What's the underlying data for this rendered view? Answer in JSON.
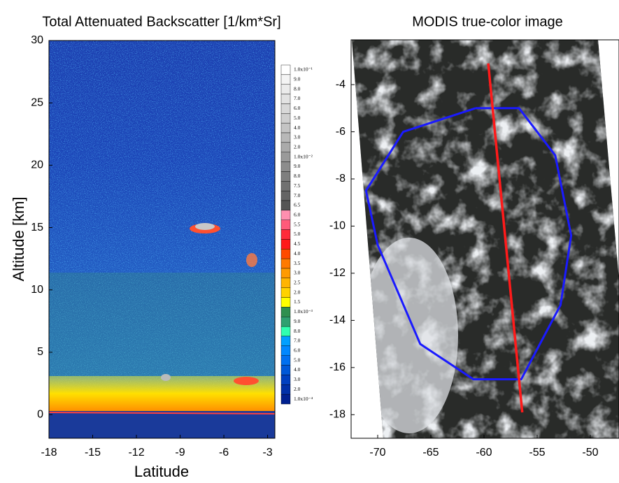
{
  "chart_data": [
    {
      "type": "curtain",
      "title": "Total Attenuated Backscatter [1/km*Sr]",
      "xlabel": "Latitude",
      "ylabel": "Altitude [km]",
      "xlim": [
        -18,
        -2.5
      ],
      "ylim": [
        -1.9,
        30
      ],
      "xticks": [
        -18,
        -15,
        -12,
        -9,
        -6,
        -3
      ],
      "yticks": [
        0,
        5,
        10,
        15,
        20,
        25,
        30
      ],
      "colorbar": {
        "labels": [
          "1.0x10⁻¹",
          "9.0",
          "8.0",
          "7.0",
          "6.0",
          "5.0",
          "4.0",
          "3.0",
          "2.0",
          "1.0x10⁻²",
          "9.0",
          "8.0",
          "7.5",
          "7.0",
          "6.5",
          "6.0",
          "5.5",
          "5.0",
          "4.5",
          "4.0",
          "3.5",
          "3.0",
          "2.5",
          "2.0",
          "1.5",
          "1.0x10⁻³",
          "9.0",
          "8.0",
          "7.0",
          "6.0",
          "5.0",
          "4.0",
          "3.0",
          "2.0",
          "1.0x10⁻⁴"
        ],
        "colors": [
          "#ffffff",
          "#f4f4f4",
          "#ebebeb",
          "#e2e2e2",
          "#d8d8d8",
          "#cfcfcf",
          "#c4c4c4",
          "#b8b8b8",
          "#aaaaaa",
          "#9a9a9a",
          "#8c8c8c",
          "#7e7e7e",
          "#717171",
          "#646464",
          "#555555",
          "#ff8fb0",
          "#ff5a7a",
          "#ff2a3a",
          "#ff1a1a",
          "#ff4a00",
          "#ff7a00",
          "#ff9a00",
          "#ffb400",
          "#ffd200",
          "#ffff00",
          "#2f8f4f",
          "#2fa070",
          "#30ffb0",
          "#00a0ff",
          "#0088ff",
          "#0070f0",
          "#0058d8",
          "#0040c0",
          "#0030a8",
          "#002090"
        ]
      }
    },
    {
      "type": "map",
      "title": "MODIS true-color image",
      "xlim": [
        -72.5,
        -47.3
      ],
      "ylim": [
        -19,
        -2.1
      ],
      "xticks": [
        -70,
        -65,
        -60,
        -55,
        -50
      ],
      "yticks": [
        -4,
        -6,
        -8,
        -10,
        -12,
        -14,
        -16,
        -18
      ],
      "polygon": {
        "color": "#1a1aff",
        "x": [
          -60.8,
          -56.7,
          -53.3,
          -51.8,
          -52.8,
          -56.5,
          -61.0,
          -66.0,
          -70.0,
          -71.1,
          -67.6,
          -60.8
        ],
        "y": [
          -5.0,
          -5.0,
          -7.0,
          -10.4,
          -13.35,
          -16.5,
          -16.5,
          -15.0,
          -10.8,
          -8.5,
          -6.0,
          -5.0
        ]
      },
      "track": {
        "color": "#ff1a1a",
        "x": [
          -59.6,
          -56.4
        ],
        "y": [
          -3.1,
          -17.9
        ]
      }
    }
  ]
}
